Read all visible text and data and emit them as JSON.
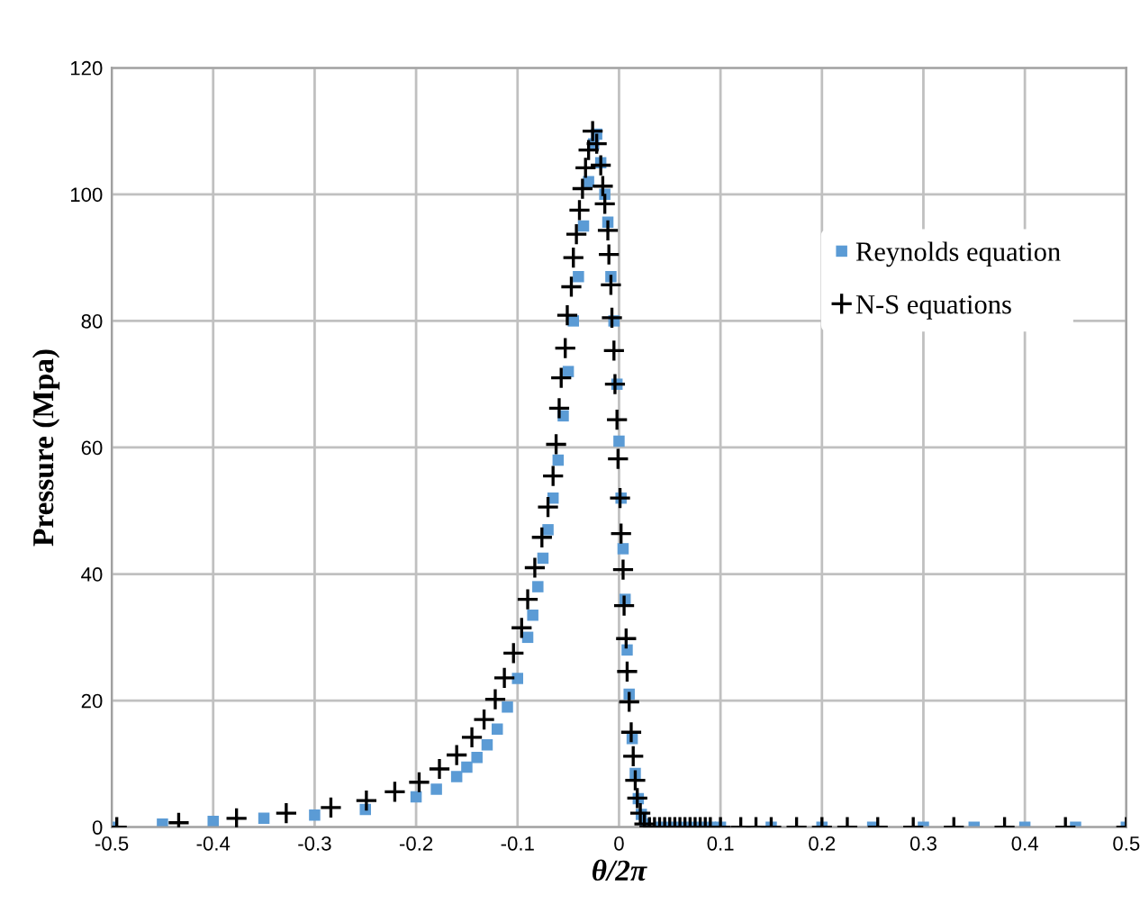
{
  "chart_data": {
    "type": "scatter",
    "xlabel": "θ/2π",
    "ylabel": "Pressure (Mpa)",
    "xlim": [
      -0.5,
      0.5
    ],
    "xticks": [
      -0.5,
      -0.4,
      -0.3,
      -0.2,
      -0.1,
      0,
      0.1,
      0.2,
      0.3,
      0.4,
      0.5
    ],
    "ylim": [
      0,
      120
    ],
    "yticks": [
      0,
      20,
      40,
      60,
      80,
      100,
      120
    ],
    "grid": true,
    "legend": "right",
    "series": [
      {
        "name": "Reynolds equation",
        "color": "#5b9bd5",
        "marker": "square",
        "x": [
          -0.5,
          -0.45,
          -0.4,
          -0.35,
          -0.3,
          -0.25,
          -0.2,
          -0.18,
          -0.16,
          -0.15,
          -0.14,
          -0.13,
          -0.12,
          -0.11,
          -0.1,
          -0.09,
          -0.085,
          -0.08,
          -0.075,
          -0.07,
          -0.065,
          -0.06,
          -0.055,
          -0.05,
          -0.045,
          -0.04,
          -0.035,
          -0.03,
          -0.025,
          -0.022,
          -0.018,
          -0.014,
          -0.011,
          -0.008,
          -0.005,
          -0.002,
          0.0,
          0.002,
          0.004,
          0.006,
          0.008,
          0.01,
          0.013,
          0.016,
          0.019,
          0.022,
          0.026,
          0.04,
          0.05,
          0.06,
          0.07,
          0.08,
          0.09,
          0.1,
          0.15,
          0.2,
          0.25,
          0.3,
          0.35,
          0.4,
          0.45,
          0.5
        ],
        "values": [
          0,
          0.5,
          0.9,
          1.4,
          1.9,
          2.8,
          4.8,
          6,
          8,
          9.5,
          11,
          13,
          15.5,
          19,
          23.5,
          30,
          33.5,
          38,
          42.5,
          47,
          52,
          58,
          65,
          72,
          80,
          87,
          95,
          102,
          108,
          109.5,
          105,
          100,
          95.6,
          87,
          80,
          70,
          61,
          52,
          44,
          36,
          28,
          21,
          14,
          8.5,
          4.5,
          2,
          0.5,
          0,
          0,
          0,
          0,
          0,
          0,
          0,
          0,
          0,
          0,
          0,
          0,
          0,
          0,
          0
        ]
      },
      {
        "name": "N-S equations",
        "color": "#000000",
        "marker": "cross",
        "x": [
          -0.495,
          -0.434,
          -0.377,
          -0.328,
          -0.284,
          -0.249,
          -0.221,
          -0.197,
          -0.177,
          -0.16,
          -0.145,
          -0.133,
          -0.122,
          -0.113,
          -0.104,
          -0.096,
          -0.09,
          -0.083,
          -0.076,
          -0.07,
          -0.065,
          -0.062,
          -0.059,
          -0.057,
          -0.053,
          -0.051,
          -0.047,
          -0.045,
          -0.042,
          -0.039,
          -0.036,
          -0.033,
          -0.03,
          -0.026,
          -0.022,
          -0.018,
          -0.016,
          -0.014,
          -0.011,
          -0.01,
          -0.008,
          -0.007,
          -0.005,
          -0.004,
          -0.002,
          -0.001,
          0.001,
          0.002,
          0.004,
          0.005,
          0.007,
          0.008,
          0.01,
          0.012,
          0.014,
          0.016,
          0.018,
          0.021,
          0.025,
          0.03,
          0.035,
          0.04,
          0.045,
          0.05,
          0.055,
          0.06,
          0.065,
          0.07,
          0.075,
          0.08,
          0.085,
          0.09,
          0.1,
          0.12,
          0.135,
          0.15,
          0.175,
          0.2,
          0.225,
          0.255,
          0.29,
          0.33,
          0.38,
          0.44,
          0.5
        ],
        "values": [
          0,
          0.7,
          1.4,
          2.2,
          3.1,
          4.2,
          5.6,
          7.1,
          9.2,
          11.4,
          14.2,
          17,
          20.2,
          23.6,
          27.5,
          31.5,
          36,
          41,
          45.8,
          50.6,
          55.5,
          60.5,
          66.2,
          71,
          75.7,
          80.9,
          85.4,
          90,
          93.7,
          97.5,
          100.9,
          104.2,
          107,
          110,
          108,
          104.6,
          101.3,
          98.5,
          94.3,
          90.5,
          85.7,
          80.5,
          75.3,
          70,
          64.4,
          58.2,
          52,
          46.4,
          40.7,
          35,
          29.8,
          24.6,
          19.8,
          15,
          11.2,
          7.4,
          4.6,
          2.2,
          0.5,
          0,
          0,
          0,
          0,
          0,
          0,
          0,
          0,
          0,
          0,
          0,
          0,
          0,
          0,
          0,
          0,
          0,
          0,
          0,
          0,
          0,
          0,
          0,
          0,
          0,
          0
        ]
      }
    ]
  }
}
